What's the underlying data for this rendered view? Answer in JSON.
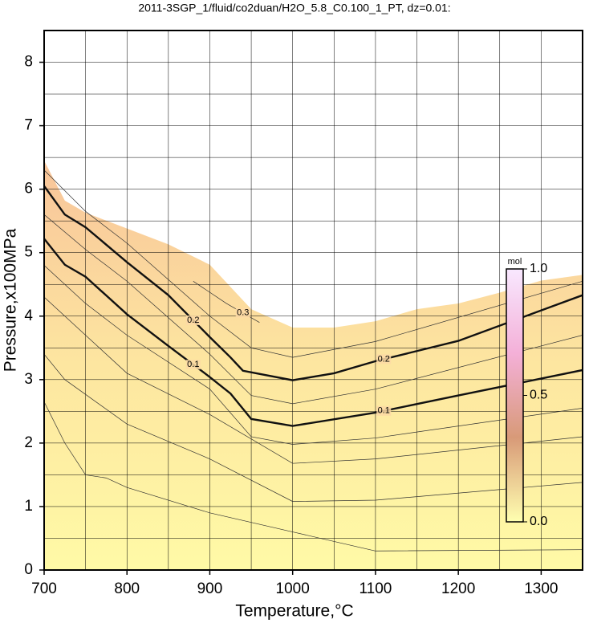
{
  "chart_data": {
    "type": "contour",
    "title": "2011-3SGP_1/fluid/co2duan/H2O_5.8_C0.100_1_PT, dz=0.01:",
    "xlabel": "Temperature,°C",
    "ylabel": "Pressure,x100MPa",
    "xlim": [
      700,
      1350
    ],
    "ylim": [
      0,
      8.5
    ],
    "xticks": [
      700,
      800,
      900,
      1000,
      1100,
      1200,
      1300
    ],
    "yticks": [
      0,
      1,
      2,
      3,
      4,
      5,
      6,
      7,
      8
    ],
    "xgrid": [
      750,
      800,
      850,
      900,
      950,
      1000,
      1050,
      1100,
      1150,
      1200,
      1250,
      1300
    ],
    "ygrid": [
      0.5,
      1,
      1.5,
      2,
      2.5,
      3,
      3.5,
      4,
      4.5,
      5,
      5.5,
      6,
      6.5,
      7,
      7.5,
      8
    ],
    "region": {
      "colors": [
        "#fffaa6",
        "#fde6a0",
        "#f8c49a"
      ],
      "x": [
        700,
        725,
        750,
        800,
        850,
        900,
        950,
        1000,
        1050,
        1100,
        1150,
        1200,
        1250,
        1300,
        1350
      ],
      "values": [
        6.45,
        5.82,
        5.63,
        5.38,
        5.13,
        4.81,
        4.11,
        3.82,
        3.82,
        3.92,
        4.11,
        4.2,
        4.37,
        4.56,
        4.65
      ]
    },
    "series": [
      {
        "x": [
          700,
          725,
          750,
          775,
          800,
          900,
          1000,
          1100,
          1350
        ],
        "values": [
          2.65,
          2.0,
          1.5,
          1.45,
          1.3,
          0.9,
          0.6,
          0.3,
          0.32
        ],
        "color": "#333333",
        "line_width": 0.7
      },
      {
        "x": [
          700,
          725,
          800,
          900,
          1000,
          1100,
          1350
        ],
        "values": [
          3.4,
          3.0,
          2.3,
          1.75,
          1.08,
          1.1,
          1.38
        ],
        "color": "#333333",
        "line_width": 0.7
      },
      {
        "x": [
          700,
          750,
          800,
          900,
          1000,
          1100,
          1350
        ],
        "values": [
          4.3,
          3.7,
          3.1,
          2.45,
          1.68,
          1.75,
          2.1
        ],
        "color": "#333333",
        "line_width": 0.7
      },
      {
        "x": [
          700,
          750,
          800,
          900,
          950,
          1000,
          1100,
          1350
        ],
        "values": [
          4.8,
          4.2,
          3.7,
          2.85,
          2.1,
          1.98,
          2.08,
          2.55
        ],
        "color": "#333333",
        "line_width": 0.7
      },
      {
        "name": "0.1",
        "x": [
          700,
          725,
          750,
          800,
          850,
          900,
          925,
          950,
          1000,
          1100,
          1200,
          1350
        ],
        "values": [
          5.22,
          4.81,
          4.62,
          4.03,
          3.53,
          3.04,
          2.78,
          2.38,
          2.27,
          2.48,
          2.75,
          3.15
        ],
        "color": "#111111",
        "line_width": 2.4
      },
      {
        "x": [
          700,
          750,
          800,
          900,
          950,
          1000,
          1100,
          1350
        ],
        "values": [
          5.6,
          5.05,
          4.55,
          3.4,
          2.75,
          2.62,
          2.85,
          3.7
        ],
        "color": "#333333",
        "line_width": 0.7
      },
      {
        "name": "0.2",
        "x": [
          700,
          725,
          750,
          800,
          850,
          900,
          925,
          940,
          1000,
          1050,
          1100,
          1200,
          1350
        ],
        "values": [
          6.05,
          5.6,
          5.4,
          4.85,
          4.33,
          3.67,
          3.35,
          3.14,
          2.99,
          3.1,
          3.29,
          3.61,
          4.33
        ],
        "color": "#111111",
        "line_width": 2.4
      },
      {
        "x": [
          700,
          750,
          800,
          900,
          950,
          1000,
          1100,
          1350
        ],
        "values": [
          6.3,
          5.65,
          5.15,
          4.0,
          3.5,
          3.35,
          3.6,
          4.55
        ],
        "color": "#333333",
        "line_width": 0.7
      },
      {
        "name": "0.3",
        "x": [
          880,
          920,
          960
        ],
        "values": [
          4.55,
          4.2,
          3.9
        ],
        "color": "#333333",
        "line_width": 0.7
      }
    ],
    "colorbar": {
      "label": "mol",
      "lim": [
        0,
        1
      ],
      "colors": [
        "#ffffb0",
        "#d89a78",
        "#f4b0d8",
        "#f8e8ff"
      ],
      "ticks": [
        {
          "value": 0,
          "label": "0.0"
        },
        {
          "value": 0.5,
          "label": "0.5"
        },
        {
          "value": 1,
          "label": "1.0"
        }
      ]
    }
  }
}
